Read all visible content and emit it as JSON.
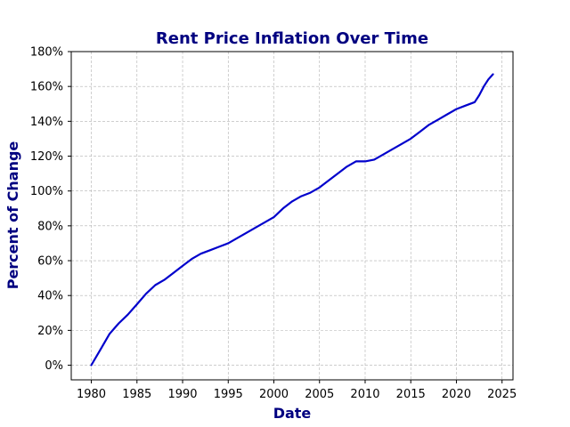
{
  "chart_data": {
    "type": "line",
    "title": "Rent Price Inflation Over Time",
    "xlabel": "Date",
    "ylabel": "Percent of Change",
    "xlim": [
      1977.8,
      2026.2
    ],
    "ylim": [
      -8.4,
      180
    ],
    "x_ticks": [
      1980,
      1985,
      1990,
      1995,
      2000,
      2005,
      2010,
      2015,
      2020,
      2025
    ],
    "y_ticks": [
      0,
      20,
      40,
      60,
      80,
      100,
      120,
      140,
      160,
      180
    ],
    "y_tick_format": "percent",
    "grid": true,
    "legend": "none",
    "series": [
      {
        "color": "#0000cc",
        "x": [
          1980,
          1981,
          1982,
          1983,
          1984,
          1985,
          1986,
          1987,
          1988,
          1989,
          1990,
          1991,
          1992,
          1993,
          1994,
          1995,
          1996,
          1997,
          1998,
          1999,
          2000,
          2001,
          2002,
          2003,
          2004,
          2005,
          2006,
          2007,
          2008,
          2009,
          2010,
          2011,
          2012,
          2013,
          2014,
          2015,
          2016,
          2017,
          2018,
          2019,
          2020,
          2021,
          2022,
          2022.5,
          2023,
          2023.5,
          2024
        ],
        "values": [
          0,
          9,
          18,
          24,
          29,
          35,
          41,
          46,
          49,
          53,
          57,
          61,
          64,
          66,
          68,
          70,
          73,
          76,
          79,
          82,
          85,
          90,
          94,
          97,
          99,
          102,
          106,
          110,
          114,
          117,
          117,
          118,
          121,
          124,
          127,
          130,
          134,
          138,
          141,
          144,
          147,
          149,
          151,
          155,
          160,
          164,
          167
        ]
      }
    ]
  },
  "style": {
    "title_color": "#000080",
    "label_color": "#000080",
    "line_color": "#0000cc",
    "grid_color": "#b0b0b0"
  }
}
